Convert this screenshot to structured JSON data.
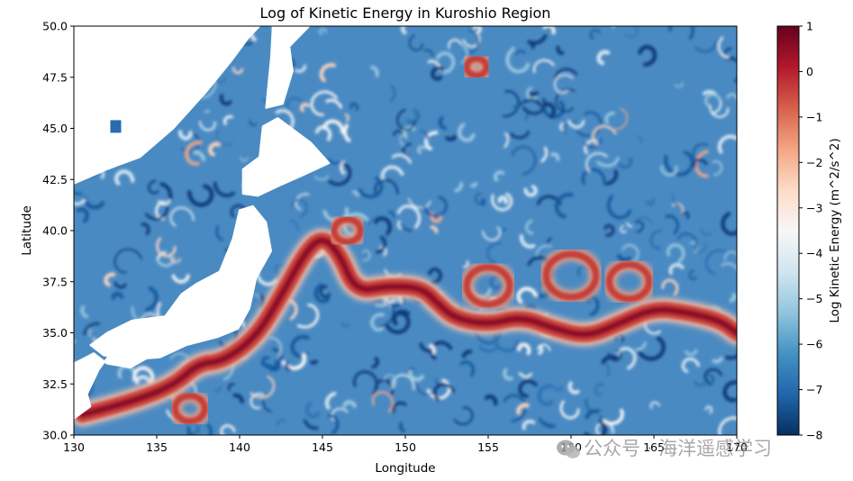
{
  "chart_data": {
    "type": "heatmap",
    "title": "Log of Kinetic Energy in Kuroshio Region",
    "xlabel": "Longitude",
    "ylabel": "Latitude",
    "xlim": [
      130,
      170
    ],
    "ylim": [
      30,
      50
    ],
    "x_ticks": [
      "130",
      "135",
      "140",
      "145",
      "150",
      "155",
      "160",
      "165",
      "170"
    ],
    "y_ticks": [
      "30.0",
      "32.5",
      "35.0",
      "37.5",
      "40.0",
      "42.5",
      "45.0",
      "47.5",
      "50.0"
    ],
    "colorbar": {
      "label": "Log Kinetic Energy (m^2/s^2)",
      "range": [
        -8,
        1
      ],
      "ticks": [
        "−8",
        "−7",
        "−6",
        "−5",
        "−4",
        "−3",
        "−2",
        "−1",
        "0",
        "1"
      ],
      "colormap": [
        "#053061",
        "#2166ac",
        "#4393c3",
        "#92c5de",
        "#d1e5f0",
        "#f7f7f7",
        "#fddbc7",
        "#f4a582",
        "#d6604d",
        "#b2182b",
        "#67001f"
      ]
    },
    "land_color": "#ffffff",
    "jet_path": [
      [
        130.5,
        31.0
      ],
      [
        133,
        31.5
      ],
      [
        136,
        32.4
      ],
      [
        137.5,
        33.5
      ],
      [
        139,
        33.6
      ],
      [
        141,
        34.8
      ],
      [
        142.5,
        36.8
      ],
      [
        144,
        39.0
      ],
      [
        145,
        39.7
      ],
      [
        146,
        38.9
      ],
      [
        147,
        37.0
      ],
      [
        149,
        37.3
      ],
      [
        151,
        37.2
      ],
      [
        152,
        36.4
      ],
      [
        153,
        35.7
      ],
      [
        155,
        35.4
      ],
      [
        157,
        35.8
      ],
      [
        159,
        35.2
      ],
      [
        161,
        34.8
      ],
      [
        163,
        35.5
      ],
      [
        165,
        36.2
      ],
      [
        167,
        36.0
      ],
      [
        169,
        35.6
      ],
      [
        170,
        35.0
      ]
    ],
    "eddies": [
      [
        155,
        37.3,
        1.3
      ],
      [
        160,
        37.8,
        1.5
      ],
      [
        163.5,
        37.5,
        1.2
      ],
      [
        146.5,
        40.0,
        0.8
      ],
      [
        154.3,
        48.0,
        0.6
      ],
      [
        137,
        31.3,
        0.9
      ]
    ]
  },
  "watermark": {
    "icon": "wechat-icon",
    "text": "公众号 · 海洋遥感学习"
  }
}
